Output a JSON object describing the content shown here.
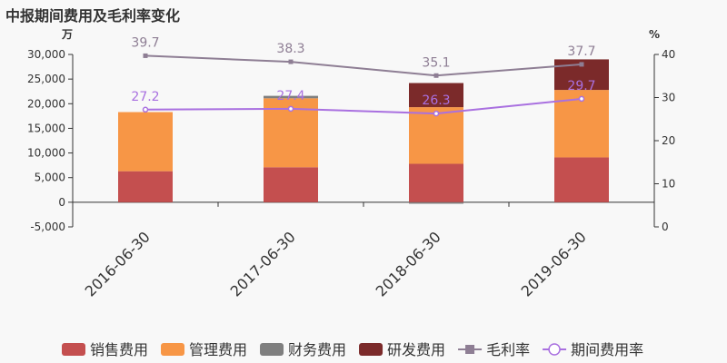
{
  "title": "中报期间费用及毛利率变化",
  "colors": {
    "sales": "#c44f4f",
    "admin": "#f79646",
    "finance": "#7f7f7f",
    "rnd": "#7b2a2a",
    "gross_margin": "#8e7e94",
    "period_expense_rate": "#a970e0",
    "axis": "#333333"
  },
  "chart_data": {
    "type": "bar",
    "stacked": true,
    "categories": [
      "2016-06-30",
      "2017-06-30",
      "2018-06-30",
      "2019-06-30"
    ],
    "y_left_unit": "万",
    "y_right_unit": "%",
    "ylim_left": [
      -5000,
      30000
    ],
    "yticks_left": [
      "30,000",
      "25,000",
      "20,000",
      "15,000",
      "10,000",
      "5,000",
      "0",
      "-5,000"
    ],
    "ylim_right": [
      0,
      40
    ],
    "yticks_right": [
      "40",
      "30",
      "20",
      "10",
      "0"
    ],
    "series": [
      {
        "name": "销售费用",
        "kind": "bar",
        "values": [
          6300,
          7100,
          7800,
          9100
        ]
      },
      {
        "name": "管理费用",
        "kind": "bar",
        "values": [
          12000,
          14000,
          11500,
          13700
        ]
      },
      {
        "name": "财务费用",
        "kind": "bar",
        "values": [
          0,
          500,
          -300,
          0
        ]
      },
      {
        "name": "研发费用",
        "kind": "bar",
        "values": [
          0,
          0,
          4900,
          6200
        ]
      },
      {
        "name": "毛利率",
        "kind": "line",
        "axis": "right",
        "values": [
          39.7,
          38.3,
          35.1,
          37.7
        ],
        "labels": [
          "39.7",
          "38.3",
          "35.1",
          "37.7"
        ]
      },
      {
        "name": "期间费用率",
        "kind": "line",
        "axis": "right",
        "values": [
          27.2,
          27.4,
          26.3,
          29.7
        ],
        "labels": [
          "27.2",
          "27.4",
          "26.3",
          "29.7"
        ]
      }
    ],
    "legend_position": "bottom",
    "grid": false
  }
}
